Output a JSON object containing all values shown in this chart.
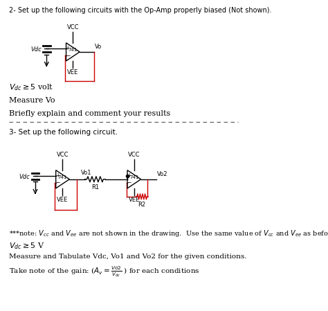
{
  "bg_color": "#ffffff",
  "section2_header": "2- Set up the following circuits with the Op-Amp properly biased (Not shown).",
  "section2_lines": [
    "V_dc >= 5 volt",
    "Measure Vo",
    "Briefly explain and comment your results"
  ],
  "section3_header": "3- Set up the following circuit.",
  "note_line": "***note: V_cc and V_ee are not shown in the drawing.  Use the same value of V_cc and V_ee as before.",
  "line_vdc": "V_dc >= 5 V",
  "line_measure": "Measure and Tabulate Vdc, Vo1 and Vo2 for the given conditions.",
  "line_gain": "Take note of the gain: (A_v = Vo2/V_dc ) for each conditions",
  "red_color": "#cc0000",
  "black_color": "#000000"
}
